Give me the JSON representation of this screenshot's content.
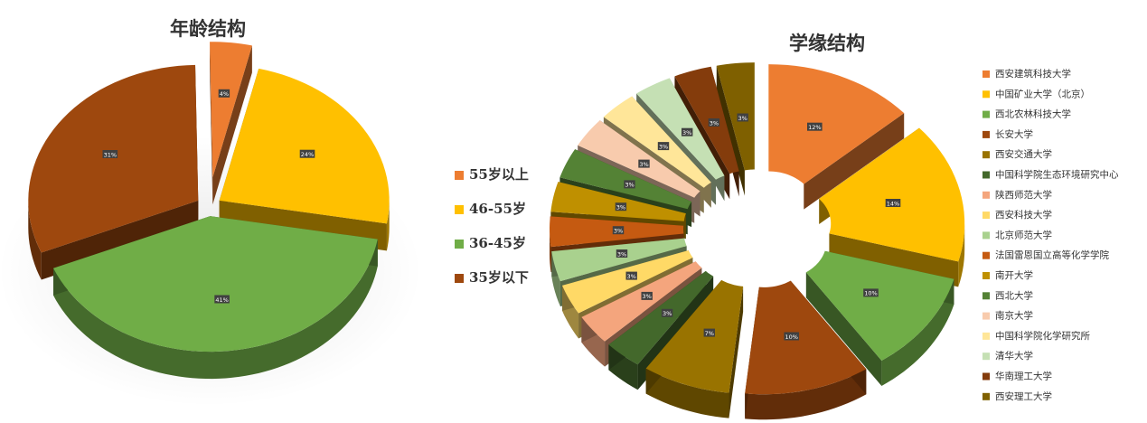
{
  "chart_data": [
    {
      "type": "pie",
      "style": "3d-exploded",
      "title": "年龄结构",
      "legend_position": "right",
      "categories": [
        "55岁以上",
        "46-55岁",
        "36-45岁",
        "35岁以下"
      ],
      "values": [
        4,
        24,
        41,
        31
      ],
      "labels": [
        "4%",
        "24%",
        "41%",
        "31%"
      ],
      "colors": [
        "#ED7D31",
        "#FFC000",
        "#70AD47",
        "#9E480E"
      ]
    },
    {
      "type": "pie",
      "style": "3d-exploded",
      "title": "学缘结构",
      "legend_position": "right",
      "categories": [
        "西安建筑科技大学",
        "中国矿业大学（北京）",
        "西北农林科技大学",
        "长安大学",
        "西安交通大学",
        "中国科学院生态环境研究中心",
        "陕西师范大学",
        "西安科技大学",
        "北京师范大学",
        "法国雷恩国立高等化学学院",
        "南开大学",
        "西北大学",
        "南京大学",
        "中国科学院化学研究所",
        "清华大学",
        "华南理工大学",
        "西安理工大学"
      ],
      "values": [
        12,
        14,
        10,
        10,
        7,
        3,
        3,
        3,
        3,
        3,
        3,
        3,
        3,
        3,
        3,
        3,
        3
      ],
      "labels": [
        "12%",
        "14%",
        "10%",
        "10%",
        "7%",
        "3%",
        "3%",
        "3%",
        "3%",
        "3%",
        "3%",
        "3%",
        "3%",
        "3%",
        "3%",
        "3%",
        "3%"
      ],
      "colors": [
        "#ED7D31",
        "#FFC000",
        "#70AD47",
        "#9E480E",
        "#997300",
        "#43682B",
        "#F4A57D",
        "#FFD966",
        "#A9D18E",
        "#C55A11",
        "#BF9000",
        "#548235",
        "#F8CBAD",
        "#FFE699",
        "#C5E0B4",
        "#843C0C",
        "#7F6000"
      ]
    }
  ]
}
